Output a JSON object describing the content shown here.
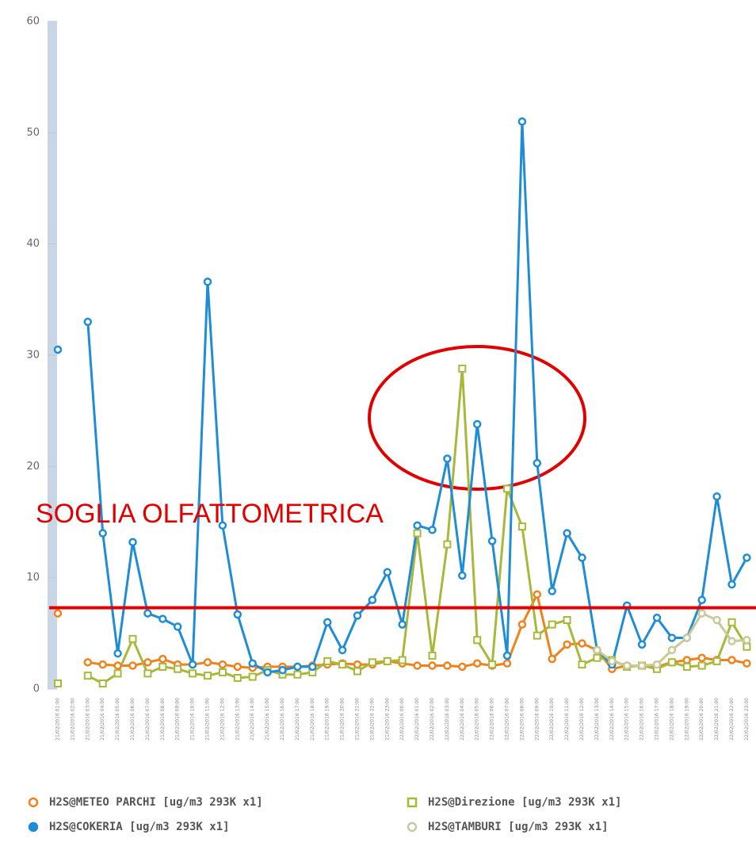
{
  "chart_data": {
    "type": "line",
    "categories": [
      "21/02/2016 01:00",
      "21/02/2016 02:00",
      "21/02/2016 03:00",
      "21/02/2016 04:00",
      "21/02/2016 05:00",
      "21/02/2016 06:00",
      "21/02/2016 07:00",
      "21/02/2016 08:00",
      "21/02/2016 09:00",
      "21/02/2016 10:00",
      "21/02/2016 11:00",
      "21/02/2016 12:00",
      "21/02/2016 13:00",
      "21/02/2016 14:00",
      "21/02/2016 15:00",
      "21/02/2016 16:00",
      "21/02/2016 17:00",
      "21/02/2016 18:00",
      "21/02/2016 19:00",
      "21/02/2016 20:00",
      "21/02/2016 21:00",
      "21/02/2016 22:00",
      "21/02/2016 23:00",
      "22/02/2016 00:00",
      "22/02/2016 01:00",
      "22/02/2016 02:00",
      "22/02/2016 03:00",
      "22/02/2016 04:00",
      "22/02/2016 05:00",
      "22/02/2016 06:00",
      "22/02/2016 07:00",
      "22/02/2016 08:00",
      "22/02/2016 09:00",
      "22/02/2016 10:00",
      "22/02/2016 11:00",
      "22/02/2016 12:00",
      "22/02/2016 13:00",
      "22/02/2016 14:00",
      "22/02/2016 15:00",
      "22/02/2016 16:00",
      "22/02/2016 17:00",
      "22/02/2016 18:00",
      "22/02/2016 19:00",
      "22/02/2016 20:00",
      "22/02/2016 21:00",
      "22/02/2016 22:00",
      "22/02/2016 23:00"
    ],
    "series": [
      {
        "name": "H2S@METEO PARCHI [ug/m3 293K x1]",
        "color": "#f0821e",
        "marker": "circle",
        "values": [
          6.8,
          null,
          2.4,
          2.2,
          2.1,
          2.1,
          2.4,
          2.7,
          2.2,
          2.2,
          2.4,
          2.2,
          2,
          1.9,
          2,
          2,
          2,
          2.1,
          2.2,
          2.3,
          2.2,
          2.2,
          2.5,
          2.3,
          2.1,
          2.1,
          2.1,
          2,
          2.3,
          2.1,
          2.3,
          5.8,
          8.5,
          2.7,
          4,
          4.1,
          3.5,
          1.8,
          2.1,
          2.1,
          2,
          2.4,
          2.6,
          2.8,
          2.6,
          2.6,
          2.3
        ]
      },
      {
        "name": "H2S@Direzione [ug/m3 293K x1]",
        "color": "#a8b83a",
        "marker": "square",
        "values": [
          0.5,
          null,
          1.2,
          0.5,
          1.4,
          4.5,
          1.4,
          2,
          1.8,
          1.4,
          1.2,
          1.5,
          1,
          1.1,
          1.7,
          1.3,
          1.3,
          1.5,
          2.5,
          2.2,
          1.6,
          2.4,
          2.5,
          2.6,
          14,
          3,
          13,
          28.8,
          4.4,
          2.2,
          18,
          14.6,
          4.8,
          5.8,
          6.2,
          2.2,
          2.8,
          2.6,
          2,
          2.1,
          1.8,
          2.4,
          2,
          2.1,
          2.5,
          6,
          3.8
        ]
      },
      {
        "name": "H2S@COKERIA [ug/m3 293K x1]",
        "color": "#1f8dd6",
        "marker": "circle",
        "values": [
          30.5,
          null,
          33,
          14,
          3.2,
          13.2,
          6.8,
          6.3,
          5.6,
          2.2,
          36.6,
          14.7,
          6.7,
          2.3,
          1.5,
          1.7,
          2,
          2,
          6,
          3.5,
          6.6,
          8,
          10.5,
          5.8,
          14.7,
          14.3,
          20.7,
          10.2,
          23.8,
          13.3,
          3,
          51,
          20.3,
          8.8,
          14,
          11.8,
          3.5,
          2.2,
          7.5,
          4,
          6.4,
          4.6,
          4.6,
          8,
          17.3,
          9.4,
          11.8
        ]
      },
      {
        "name": "H2S@TAMBURI [ug/m3 293K x1]",
        "color": "#c9c99a",
        "marker": "circle",
        "values": [
          null,
          null,
          null,
          null,
          null,
          null,
          null,
          null,
          null,
          null,
          null,
          null,
          null,
          null,
          null,
          null,
          null,
          null,
          null,
          null,
          null,
          null,
          null,
          null,
          null,
          null,
          null,
          null,
          null,
          null,
          null,
          null,
          null,
          null,
          null,
          null,
          3.5,
          2.5,
          2.1,
          2.1,
          2.2,
          3.5,
          4.6,
          6.8,
          6.2,
          4.3,
          4.4
        ]
      }
    ],
    "ylim": [
      0,
      60
    ],
    "yticks": [
      0,
      10,
      20,
      30,
      40,
      50,
      60
    ],
    "threshold": {
      "value": 7.3,
      "label": "SOGLIA OLFATTOMETRICA",
      "color": "#e00000"
    }
  }
}
